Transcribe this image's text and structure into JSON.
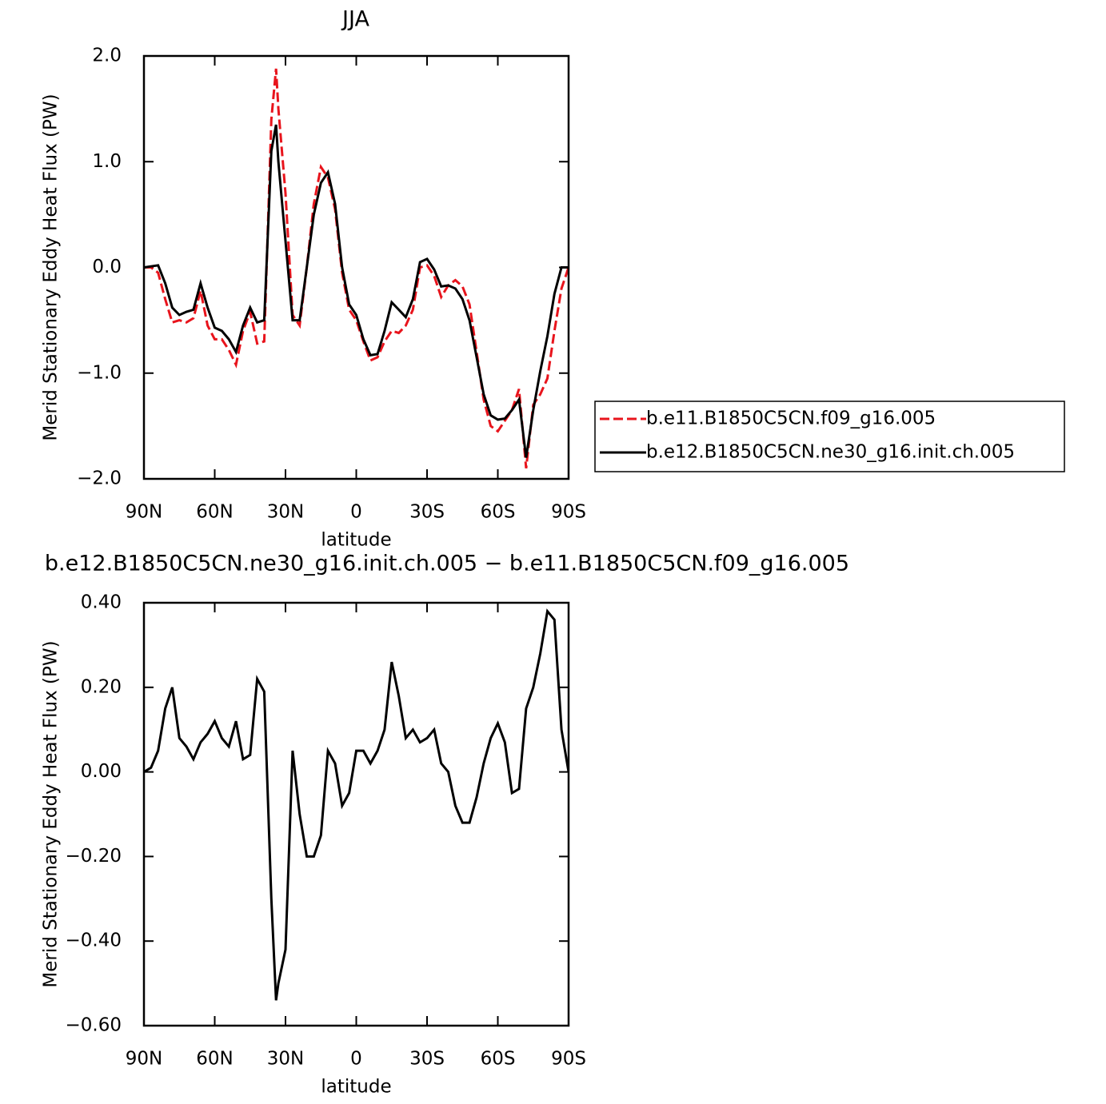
{
  "chart_data": [
    {
      "type": "line",
      "title": "JJA",
      "x_label": "latitude",
      "y_label": "Merid Stationary Eddy Heat Flux (PW)",
      "xlim": [
        90,
        -90
      ],
      "ylim": [
        -2,
        2
      ],
      "xticks": [
        {
          "value": 90,
          "label": "90N"
        },
        {
          "value": 60,
          "label": "60N"
        },
        {
          "value": 30,
          "label": "30N"
        },
        0,
        {
          "value": -30,
          "label": "30S"
        },
        {
          "value": -60,
          "label": "60S"
        },
        {
          "value": -90,
          "label": "90S"
        }
      ],
      "yticks": [
        {
          "value": 2,
          "label": "2.0"
        },
        {
          "value": 1,
          "label": "1.0"
        },
        {
          "value": 0,
          "label": "0.0"
        },
        {
          "value": -1,
          "label": "−1.0"
        },
        {
          "value": -2,
          "label": "−2.0"
        }
      ],
      "legend": "right",
      "x": [
        90,
        87,
        84,
        81,
        78,
        75,
        72,
        69,
        66,
        63,
        60,
        57,
        54,
        51,
        48,
        45,
        42,
        39,
        36,
        34,
        33,
        30,
        27,
        24,
        21,
        18,
        15,
        12,
        9,
        6,
        3,
        0,
        -3,
        -6,
        -9,
        -12,
        -15,
        -18,
        -21,
        -24,
        -27,
        -30,
        -33,
        -36,
        -39,
        -42,
        -45,
        -48,
        -51,
        -54,
        -57,
        -60,
        -63,
        -66,
        -69,
        -72,
        -75,
        -78,
        -81,
        -84,
        -87,
        -90
      ],
      "series": [
        {
          "name": "b.e11.B1850C5CN.f09_g16.005",
          "color": "#e8141c",
          "line_style": "dashed",
          "values": [
            0,
            0,
            -0.05,
            -0.3,
            -0.52,
            -0.5,
            -0.52,
            -0.48,
            -0.22,
            -0.55,
            -0.68,
            -0.68,
            -0.78,
            -0.92,
            -0.6,
            -0.42,
            -0.72,
            -0.7,
            1.4,
            1.88,
            1.5,
            0.7,
            -0.45,
            -0.55,
            0,
            0.6,
            0.95,
            0.85,
            0.55,
            -0.05,
            -0.4,
            -0.5,
            -0.7,
            -0.88,
            -0.85,
            -0.7,
            -0.6,
            -0.62,
            -0.55,
            -0.4,
            0,
            0.02,
            -0.08,
            -0.28,
            -0.17,
            -0.12,
            -0.18,
            -0.35,
            -0.8,
            -1.25,
            -1.5,
            -1.55,
            -1.45,
            -1.35,
            -1.15,
            -1.9,
            -1.3,
            -1.2,
            -1.05,
            -0.6,
            -0.2,
            0
          ]
        },
        {
          "name": "b.e12.B1850C5CN.ne30_g16.init.ch.005",
          "color": "#000000",
          "line_style": "solid",
          "values": [
            0,
            0.01,
            0.02,
            -0.15,
            -0.38,
            -0.45,
            -0.42,
            -0.4,
            -0.15,
            -0.38,
            -0.57,
            -0.6,
            -0.68,
            -0.8,
            -0.55,
            -0.38,
            -0.52,
            -0.5,
            1.1,
            1.35,
            1.0,
            0.25,
            -0.5,
            -0.5,
            0,
            0.5,
            0.8,
            0.9,
            0.6,
            0,
            -0.35,
            -0.45,
            -0.68,
            -0.83,
            -0.82,
            -0.6,
            -0.33,
            -0.4,
            -0.47,
            -0.3,
            0.05,
            0.08,
            -0.02,
            -0.18,
            -0.17,
            -0.2,
            -0.3,
            -0.5,
            -0.85,
            -1.2,
            -1.4,
            -1.44,
            -1.43,
            -1.35,
            -1.25,
            -1.8,
            -1.35,
            -0.98,
            -0.65,
            -0.25,
            0,
            0
          ]
        }
      ]
    },
    {
      "type": "line",
      "title": "b.e12.B1850C5CN.ne30_g16.init.ch.005 − b.e11.B1850C5CN.f09_g16.005",
      "x_label": "latitude",
      "y_label": "Merid Stationary Eddy Heat Flux (PW)",
      "xlim": [
        90,
        -90
      ],
      "ylim": [
        -0.6,
        0.4
      ],
      "xticks": [
        {
          "value": 90,
          "label": "90N"
        },
        {
          "value": 60,
          "label": "60N"
        },
        {
          "value": 30,
          "label": "30N"
        },
        0,
        {
          "value": -30,
          "label": "30S"
        },
        {
          "value": -60,
          "label": "60S"
        },
        {
          "value": -90,
          "label": "90S"
        }
      ],
      "yticks": [
        {
          "value": 0.4,
          "label": "0.40"
        },
        {
          "value": 0.2,
          "label": "0.20"
        },
        {
          "value": 0,
          "label": "0.00"
        },
        {
          "value": -0.2,
          "label": "−0.20"
        },
        {
          "value": -0.4,
          "label": "−0.40"
        },
        {
          "value": -0.6,
          "label": "−0.60"
        }
      ],
      "x": [
        90,
        87,
        84,
        81,
        78,
        75,
        72,
        69,
        66,
        63,
        60,
        57,
        54,
        51,
        48,
        45,
        42,
        39,
        36,
        34,
        33,
        30,
        27,
        24,
        21,
        18,
        15,
        12,
        9,
        6,
        3,
        0,
        -3,
        -6,
        -9,
        -12,
        -15,
        -18,
        -21,
        -24,
        -27,
        -30,
        -33,
        -36,
        -39,
        -42,
        -45,
        -48,
        -51,
        -54,
        -57,
        -60,
        -63,
        -66,
        -69,
        -72,
        -75,
        -78,
        -81,
        -84,
        -87,
        -90
      ],
      "series": [
        {
          "color": "#000000",
          "line_style": "solid",
          "values": [
            0,
            0.01,
            0.05,
            0.15,
            0.2,
            0.08,
            0.06,
            0.03,
            0.07,
            0.09,
            0.12,
            0.08,
            0.06,
            0.12,
            0.03,
            0.04,
            0.22,
            0.19,
            -0.3,
            -0.54,
            -0.5,
            -0.42,
            0.05,
            -0.1,
            -0.2,
            -0.2,
            -0.15,
            0.05,
            0.02,
            -0.08,
            -0.05,
            0.05,
            0.05,
            0.02,
            0.05,
            0.1,
            0.26,
            0.18,
            0.08,
            0.1,
            0.07,
            0.08,
            0.1,
            0.02,
            0,
            -0.08,
            -0.12,
            -0.12,
            -0.06,
            0.02,
            0.08,
            0.115,
            0.07,
            -0.05,
            -0.04,
            0.15,
            0.2,
            0.28,
            0.38,
            0.36,
            0.1,
            0
          ]
        }
      ]
    }
  ]
}
